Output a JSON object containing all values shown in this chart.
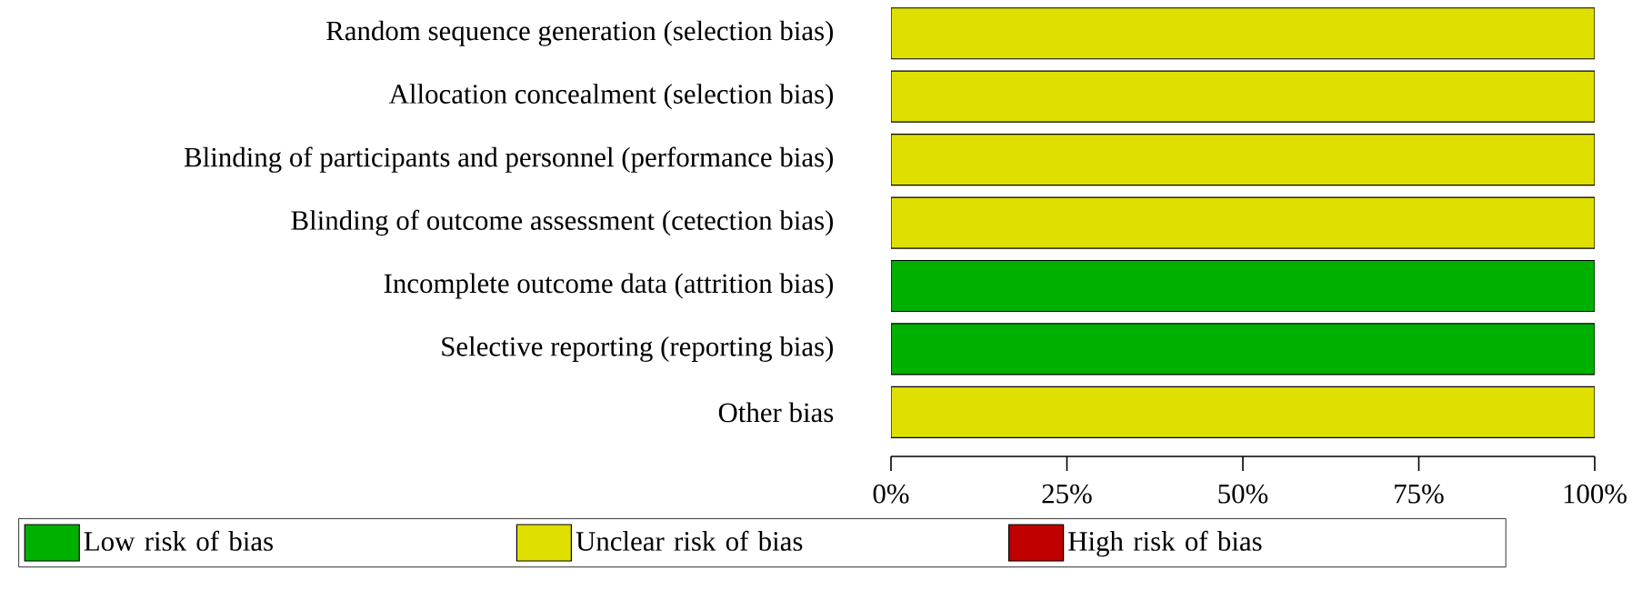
{
  "chart_data": {
    "type": "bar",
    "orientation": "horizontal",
    "stacked": true,
    "categories": [
      "Random sequence generation (selection bias)",
      "Allocation concealment (selection bias)",
      "Blinding of participants and personnel (performance bias)",
      "Blinding of outcome assessment (cetection bias)",
      "Incomplete outcome data (attrition bias)",
      "Selective reporting (reporting bias)",
      "Other bias"
    ],
    "series": [
      {
        "name": "Low risk of bias",
        "color": "#00b000",
        "values": [
          0,
          0,
          0,
          0,
          100,
          100,
          0
        ]
      },
      {
        "name": "Unclear risk of bias",
        "color": "#e0e000",
        "values": [
          100,
          100,
          100,
          100,
          0,
          0,
          100
        ]
      },
      {
        "name": "High risk of bias",
        "color": "#c00000",
        "values": [
          0,
          0,
          0,
          0,
          0,
          0,
          0
        ]
      }
    ],
    "xlim": [
      0,
      100
    ],
    "xticks": [
      {
        "value": 0,
        "label": "0%"
      },
      {
        "value": 25,
        "label": "25%"
      },
      {
        "value": 50,
        "label": "50%"
      },
      {
        "value": 75,
        "label": "75%"
      },
      {
        "value": 100,
        "label": "100%"
      }
    ],
    "legend": "bottom"
  }
}
